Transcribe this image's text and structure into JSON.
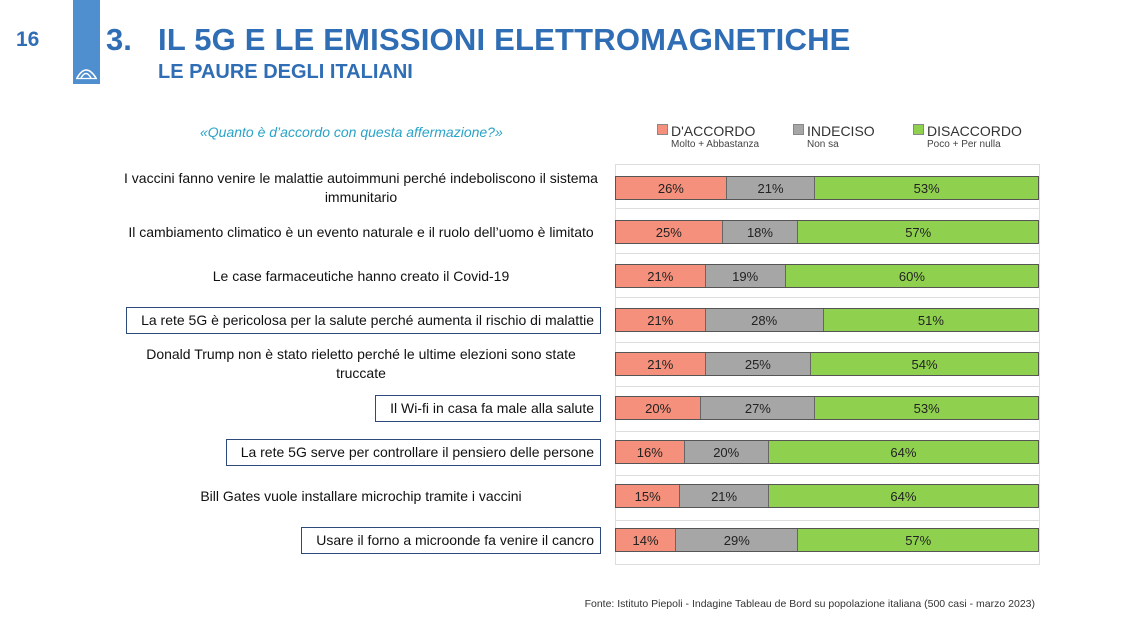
{
  "page": {
    "number": "16"
  },
  "header": {
    "number": "3.",
    "title": "IL 5G E LE EMISSIONI ELETTROMAGNETICHE",
    "subtitle": "LE PAURE DEGLI ITALIANI"
  },
  "question": "«Quanto è d’accordo con questa affermazione?»",
  "colors": {
    "accordo": "#f4907c",
    "indeciso": "#a6a6a6",
    "disaccordo": "#8fd14f",
    "brand": "#2f6db5"
  },
  "legend": [
    {
      "label": "D'ACCORDO",
      "sub": "Molto + Abbastanza",
      "color": "#f4907c"
    },
    {
      "label": "INDECISO",
      "sub": "Non sa",
      "color": "#a6a6a6"
    },
    {
      "label": "DISACCORDO",
      "sub": "Poco + Per nulla",
      "color": "#8fd14f"
    }
  ],
  "chart_data": {
    "type": "bar",
    "orientation": "horizontal-stacked-100",
    "categories": [
      "I vaccini fanno venire le malattie autoimmuni perché indeboliscono il sistema immunitario",
      "Il cambiamento climatico è un evento naturale e il ruolo dell’uomo è limitato",
      "Le case farmaceutiche hanno creato il Covid-19",
      "La rete 5G è pericolosa per la salute perché aumenta il rischio di malattie",
      "Donald Trump non è stato rieletto perché le ultime elezioni sono state truccate",
      "Il Wi-fi in casa fa male alla salute",
      "La rete 5G serve per controllare il pensiero delle persone",
      "Bill Gates vuole installare microchip tramite i vaccini",
      "Usare il forno a microonde fa venire il cancro"
    ],
    "highlighted": [
      false,
      false,
      false,
      true,
      false,
      true,
      true,
      false,
      true
    ],
    "series": [
      {
        "name": "D'ACCORDO",
        "values": [
          26,
          25,
          21,
          21,
          21,
          20,
          16,
          15,
          14
        ]
      },
      {
        "name": "INDECISO",
        "values": [
          21,
          18,
          19,
          28,
          25,
          27,
          20,
          21,
          29
        ]
      },
      {
        "name": "DISACCORDO",
        "values": [
          53,
          57,
          60,
          51,
          54,
          53,
          64,
          64,
          57
        ]
      }
    ],
    "value_suffix": "%",
    "legend_position": "top",
    "grid": true
  },
  "source": "Fonte: Istituto Piepoli - Indagine Tableau de Bord su popolazione italiana (500 casi - marzo 2023)"
}
